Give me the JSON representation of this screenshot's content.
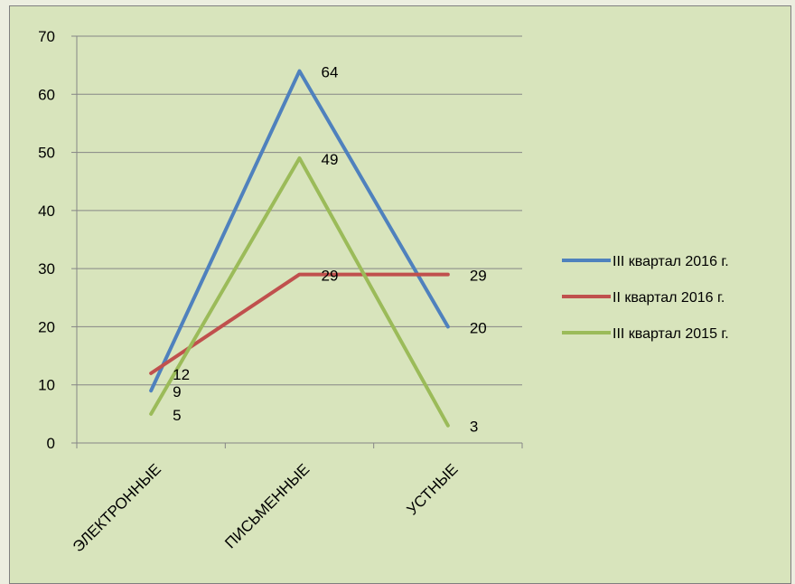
{
  "chart_data": {
    "type": "line",
    "categories": [
      "ЭЛЕКТРОННЫЕ",
      "ПИСЬМЕННЫЕ",
      "УСТНЫЕ"
    ],
    "series": [
      {
        "name": "III квартал 2016 г.",
        "values": [
          9,
          64,
          20
        ],
        "color": "#4f81bd"
      },
      {
        "name": "II квартал 2016 г.",
        "values": [
          12,
          29,
          29
        ],
        "color": "#c0504d"
      },
      {
        "name": "III квартал 2015 г.",
        "values": [
          5,
          49,
          3
        ],
        "color": "#9bbb59"
      }
    ],
    "ylim": [
      0,
      70
    ],
    "yticks": [
      0,
      10,
      20,
      30,
      40,
      50,
      60,
      70
    ],
    "grid": true,
    "legend": "right",
    "background": "#d8e4bc",
    "data_labels": true
  }
}
